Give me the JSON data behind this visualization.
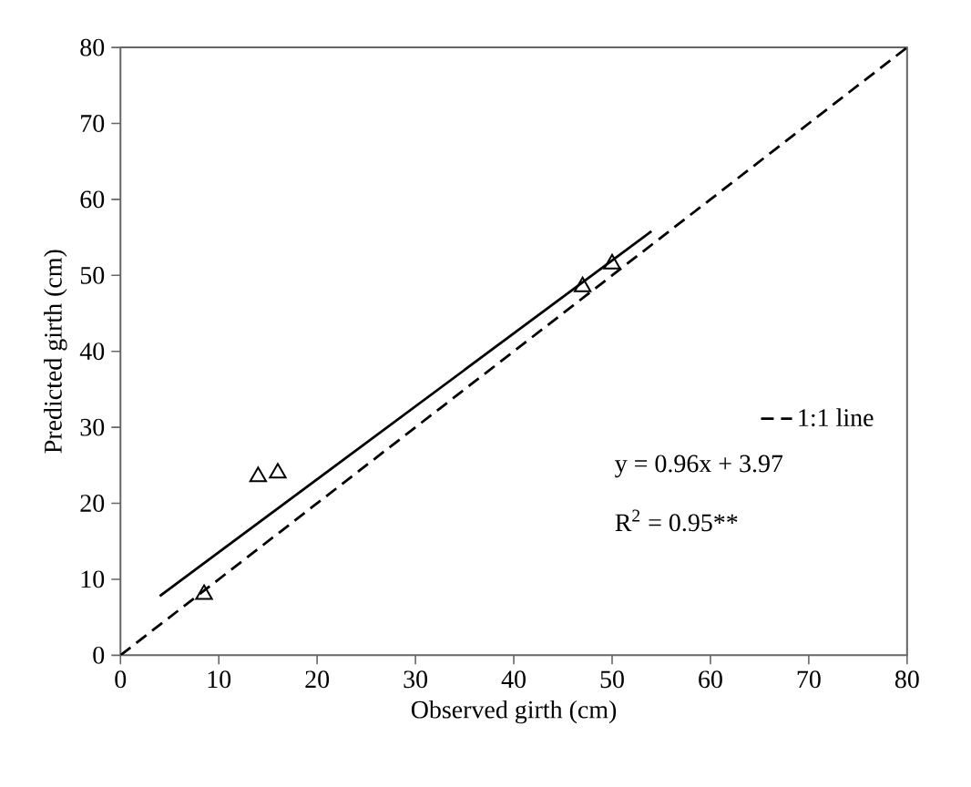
{
  "chart_data": {
    "type": "scatter",
    "xlabel": "Observed girth (cm)",
    "ylabel": "Predicted girth (cm)",
    "xlim": [
      0,
      80
    ],
    "ylim": [
      0,
      80
    ],
    "xticks": [
      0,
      10,
      20,
      30,
      40,
      50,
      60,
      70,
      80
    ],
    "yticks": [
      0,
      10,
      20,
      30,
      40,
      50,
      60,
      70,
      80
    ],
    "series": [
      {
        "marker": "triangle",
        "color": "#000000",
        "x": [
          8.5,
          14,
          16,
          47,
          50
        ],
        "values": [
          8,
          23.5,
          24,
          48.5,
          51.5
        ]
      },
      {
        "type": "line",
        "marker": "none",
        "line_style": "solid",
        "color": "#000000",
        "x": [
          4,
          54
        ],
        "values": [
          7.8,
          55.8
        ]
      },
      {
        "type": "line",
        "name": "1:1 line",
        "marker": "none",
        "line_style": "dashed",
        "color": "#000000",
        "x": [
          0,
          80
        ],
        "values": [
          0,
          80
        ]
      }
    ],
    "legend": "bottom right",
    "grid": false,
    "annotations": [
      "y = 0.96x + 3.97",
      "R$^{2}$ = 0.95**"
    ]
  }
}
